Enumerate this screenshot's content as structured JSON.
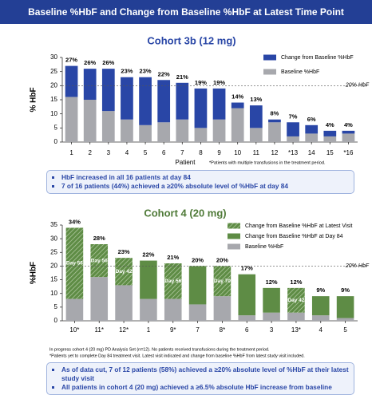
{
  "header": {
    "title": "Baseline %HbF and Change from Baseline %HbF at Latest Time Point"
  },
  "chart_data": [
    {
      "type": "stacked_bar",
      "title": "Cohort 3b (12 mg)",
      "ylabel": "% HbF",
      "xlabel": "Patient",
      "categories": [
        "1",
        "2",
        "3",
        "4",
        "5",
        "6",
        "7",
        "8",
        "9",
        "10",
        "11",
        "12",
        "*13",
        "14",
        "15",
        "*16"
      ],
      "series": [
        {
          "name": "Baseline %HbF",
          "color": "#a7a8ad",
          "values": [
            16,
            15,
            11,
            8,
            6,
            7,
            8,
            5,
            8,
            12,
            5,
            7,
            2,
            3,
            2,
            3
          ]
        },
        {
          "name": "Change from Baseline %HbF",
          "color": "#2946a6",
          "values": [
            11,
            11,
            15,
            15,
            17,
            15,
            13,
            14,
            11,
            2,
            8,
            1,
            5,
            3,
            2,
            1
          ]
        }
      ],
      "totals": {
        "values": [
          27,
          26,
          26,
          23,
          23,
          22,
          21,
          19,
          19,
          14,
          13,
          8,
          7,
          6,
          4,
          4
        ],
        "value_labels": [
          "27%",
          "26%",
          "26%",
          "23%",
          "23%",
          "22%",
          "21%",
          "19%",
          "19%",
          "14%",
          "13%",
          "8%",
          "7%",
          "6%",
          "4%",
          "4%"
        ]
      },
      "ylim": [
        0,
        30
      ],
      "yticks": [
        0,
        5,
        10,
        15,
        20,
        25,
        30
      ],
      "reference_line": {
        "value": 20,
        "label": "20% HbF"
      },
      "legend": "top-right",
      "footnote": "*Patients with multiple transfusions in the treatment period."
    },
    {
      "type": "stacked_bar",
      "title": "Cohort 4 (20 mg)",
      "ylabel": "%HbF",
      "categories": [
        "10*",
        "11*",
        "12*",
        "1",
        "9*",
        "7",
        "8*",
        "6",
        "3",
        "13*",
        "4",
        "5"
      ],
      "series": [
        {
          "name": "Baseline %HbF",
          "color": "#a7a8ad",
          "values": [
            8,
            16,
            13,
            8,
            8,
            6,
            9,
            2,
            3,
            3,
            2,
            1
          ]
        },
        {
          "name": "Change from Baseline %HbF at Day 84",
          "color": "#5e8c45",
          "values": [
            null,
            null,
            null,
            14,
            null,
            14,
            null,
            15,
            9,
            null,
            7,
            8
          ]
        },
        {
          "name": "Change from Baseline %HbF at Latest Visit",
          "color": "#5e8c45",
          "hatch": true,
          "values": [
            26,
            12,
            10,
            null,
            13,
            null,
            11,
            null,
            null,
            9,
            null,
            null
          ]
        }
      ],
      "totals": {
        "values": [
          34,
          28,
          23,
          22,
          21,
          20,
          20,
          17,
          12,
          12,
          9,
          9
        ],
        "value_labels": [
          "34%",
          "28%",
          "23%",
          "22%",
          "21%",
          "20%",
          "20%",
          "17%",
          "12%",
          "12%",
          "9%",
          "9%"
        ]
      },
      "day_labels": [
        "Day 56",
        "Day 56",
        "Day 42",
        null,
        "Day 56",
        null,
        "Day 70",
        null,
        null,
        "Day 42",
        null,
        null
      ],
      "ylim": [
        0,
        35
      ],
      "yticks": [
        0,
        5,
        10,
        15,
        20,
        25,
        30,
        35
      ],
      "reference_line": {
        "value": 20,
        "label": "20% HbF"
      },
      "legend": "top-right",
      "footnotes": [
        "In progress cohort 4 (20 mg) PD Analysis Set (n=12). No patients received transfusions during the treatment period.",
        "*Patients yet to complete Day 84 treatment visit. Latest visit indicated and change from baseline %HbF from latest study visit included."
      ]
    }
  ],
  "callouts": [
    {
      "items": [
        "HbF increased in all 16 patients at day 84",
        "7 of 16 patients (44%) achieved a ≥20% absolute level of %HbF at day 84"
      ]
    },
    {
      "items": [
        "As of data cut, 7 of 12 patients (58%) achieved a ≥20% absolute level of %HbF at their latest study visit",
        "All patients in cohort 4 (20 mg) achieved a ≥6.5% absolute HbF increase from baseline"
      ]
    }
  ]
}
